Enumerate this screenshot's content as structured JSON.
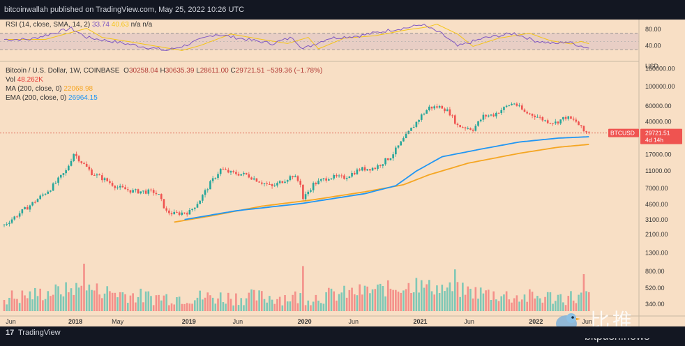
{
  "header": {
    "published": "bitcoinwallah published on TradingView.com, May 25, 2022 10:26 UTC"
  },
  "footer": {
    "logo": "17",
    "brand": "TradingView"
  },
  "rsi": {
    "label": "RSI",
    "params": "(14, close, SMA, 14, 2)",
    "value1": "33.74",
    "value2": "40.63",
    "na1": "n/a",
    "na2": "n/a",
    "axis": [
      "80.00",
      "40.00"
    ],
    "colors": {
      "rsi": "#7e57c2",
      "sma": "#f5c518"
    }
  },
  "legend": {
    "title": "Bitcoin / U.S. Dollar, 1W, COINBASE",
    "o_label": "O",
    "o": "30258.04",
    "h_label": "H",
    "h": "30635.39",
    "l_label": "L",
    "l": "28611.00",
    "c_label": "C",
    "c": "29721.51",
    "change": "−539.36 (−1.78%)",
    "vol_label": "Vol",
    "vol": "48.262K",
    "ma_label": "MA (200, close, 0)",
    "ma": "22068.98",
    "ema_label": "EMA (200, close, 0)",
    "ema": "26964.15"
  },
  "price_axis": {
    "currency": "USD",
    "ticks": [
      "160000.00",
      "100000.00",
      "60000.00",
      "40000.00",
      "17000.00",
      "11000.00",
      "7000.00",
      "4600.00",
      "3100.00",
      "2100.00",
      "1300.00",
      "800.00",
      "520.00",
      "340.00"
    ]
  },
  "price_tag": {
    "symbol": "BTCUSD",
    "price": "29721.51",
    "countdown": "4d 14h"
  },
  "time_axis": [
    "Jun",
    "2018",
    "May",
    "2019",
    "Jun",
    "2020",
    "Jun",
    "2021",
    "Jun",
    "2022",
    "Jun"
  ],
  "watermark": {
    "cn": "比推",
    "site": "bitpush.news"
  },
  "colors": {
    "up": "#26a69a",
    "down": "#ef5350",
    "ma": "#f5a623",
    "ema": "#2196f3",
    "bg": "#f8dfc5"
  },
  "chart_data": {
    "type": "candlestick",
    "title": "Bitcoin / U.S. Dollar, 1W, COINBASE",
    "scale": "log",
    "ylim": [
      250,
      200000
    ],
    "price_anchors": [
      {
        "t": 0,
        "p": 2700
      },
      {
        "t": 10,
        "p": 4500
      },
      {
        "t": 18,
        "p": 7000
      },
      {
        "t": 24,
        "p": 11000
      },
      {
        "t": 27,
        "p": 17500
      },
      {
        "t": 30,
        "p": 14000
      },
      {
        "t": 34,
        "p": 10500
      },
      {
        "t": 40,
        "p": 8500
      },
      {
        "t": 44,
        "p": 7200
      },
      {
        "t": 50,
        "p": 6500
      },
      {
        "t": 58,
        "p": 6400
      },
      {
        "t": 60,
        "p": 5800
      },
      {
        "t": 63,
        "p": 3800
      },
      {
        "t": 66,
        "p": 3600
      },
      {
        "t": 72,
        "p": 3800
      },
      {
        "t": 76,
        "p": 5200
      },
      {
        "t": 80,
        "p": 8000
      },
      {
        "t": 84,
        "p": 11500
      },
      {
        "t": 88,
        "p": 10500
      },
      {
        "t": 94,
        "p": 10000
      },
      {
        "t": 100,
        "p": 8200
      },
      {
        "t": 104,
        "p": 7300
      },
      {
        "t": 108,
        "p": 8500
      },
      {
        "t": 112,
        "p": 9800
      },
      {
        "t": 115,
        "p": 8000
      },
      {
        "t": 116,
        "p": 5300
      },
      {
        "t": 120,
        "p": 7800
      },
      {
        "t": 126,
        "p": 9400
      },
      {
        "t": 132,
        "p": 9300
      },
      {
        "t": 138,
        "p": 11500
      },
      {
        "t": 144,
        "p": 12000
      },
      {
        "t": 150,
        "p": 16000
      },
      {
        "t": 154,
        "p": 23000
      },
      {
        "t": 158,
        "p": 33000
      },
      {
        "t": 162,
        "p": 47000
      },
      {
        "t": 165,
        "p": 58000
      },
      {
        "t": 170,
        "p": 59000
      },
      {
        "t": 173,
        "p": 50000
      },
      {
        "t": 176,
        "p": 36000
      },
      {
        "t": 182,
        "p": 33000
      },
      {
        "t": 186,
        "p": 46000
      },
      {
        "t": 190,
        "p": 48000
      },
      {
        "t": 196,
        "p": 62000
      },
      {
        "t": 198,
        "p": 65000
      },
      {
        "t": 202,
        "p": 51000
      },
      {
        "t": 206,
        "p": 47000
      },
      {
        "t": 210,
        "p": 41000
      },
      {
        "t": 214,
        "p": 39000
      },
      {
        "t": 218,
        "p": 45000
      },
      {
        "t": 222,
        "p": 40000
      },
      {
        "t": 225,
        "p": 31000
      },
      {
        "t": 227,
        "p": 29721
      }
    ],
    "ma200_anchors": [
      {
        "t": 66,
        "p": 2900
      },
      {
        "t": 80,
        "p": 3400
      },
      {
        "t": 100,
        "p": 4400
      },
      {
        "t": 120,
        "p": 5200
      },
      {
        "t": 140,
        "p": 6400
      },
      {
        "t": 155,
        "p": 7700
      },
      {
        "t": 165,
        "p": 10000
      },
      {
        "t": 180,
        "p": 13500
      },
      {
        "t": 200,
        "p": 17500
      },
      {
        "t": 215,
        "p": 20500
      },
      {
        "t": 227,
        "p": 22069
      }
    ],
    "ema200_anchors": [
      {
        "t": 70,
        "p": 3100
      },
      {
        "t": 90,
        "p": 3900
      },
      {
        "t": 115,
        "p": 4700
      },
      {
        "t": 140,
        "p": 6100
      },
      {
        "t": 152,
        "p": 7500
      },
      {
        "t": 160,
        "p": 11000
      },
      {
        "t": 170,
        "p": 16000
      },
      {
        "t": 185,
        "p": 19500
      },
      {
        "t": 200,
        "p": 23500
      },
      {
        "t": 215,
        "p": 26000
      },
      {
        "t": 227,
        "p": 26964
      }
    ],
    "volume_spikes": [
      {
        "t": 31,
        "v": 1.0
      },
      {
        "t": 116,
        "v": 0.95
      },
      {
        "t": 160,
        "v": 0.7
      },
      {
        "t": 175,
        "v": 0.88
      },
      {
        "t": 225,
        "v": 0.78
      }
    ],
    "rsi_anchors": [
      {
        "t": 10,
        "v": 55
      },
      {
        "t": 26,
        "v": 82
      },
      {
        "t": 32,
        "v": 60
      },
      {
        "t": 44,
        "v": 48
      },
      {
        "t": 63,
        "v": 28
      },
      {
        "t": 70,
        "v": 40
      },
      {
        "t": 82,
        "v": 68
      },
      {
        "t": 94,
        "v": 55
      },
      {
        "t": 104,
        "v": 45
      },
      {
        "t": 112,
        "v": 60
      },
      {
        "t": 116,
        "v": 32
      },
      {
        "t": 126,
        "v": 58
      },
      {
        "t": 138,
        "v": 64
      },
      {
        "t": 150,
        "v": 78
      },
      {
        "t": 158,
        "v": 85
      },
      {
        "t": 162,
        "v": 92
      },
      {
        "t": 170,
        "v": 68
      },
      {
        "t": 176,
        "v": 38
      },
      {
        "t": 186,
        "v": 58
      },
      {
        "t": 198,
        "v": 70
      },
      {
        "t": 206,
        "v": 52
      },
      {
        "t": 214,
        "v": 44
      },
      {
        "t": 218,
        "v": 50
      },
      {
        "t": 227,
        "v": 33.74
      }
    ]
  }
}
